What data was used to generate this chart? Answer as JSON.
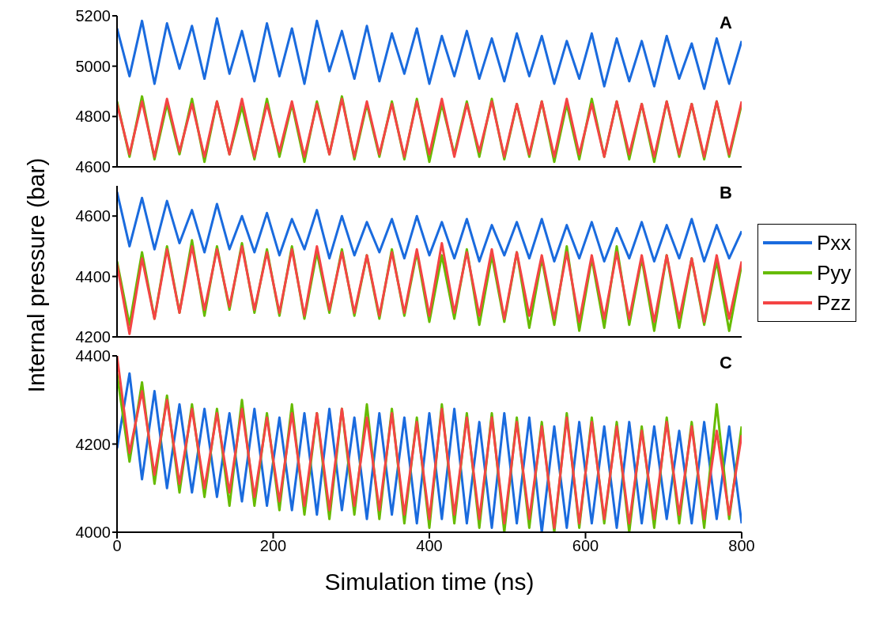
{
  "chart_data": [
    {
      "type": "line",
      "title": "A",
      "x": [
        0,
        16,
        32,
        48,
        64,
        80,
        96,
        112,
        128,
        144,
        160,
        176,
        192,
        208,
        224,
        240,
        256,
        272,
        288,
        304,
        320,
        336,
        352,
        368,
        384,
        400,
        416,
        432,
        448,
        464,
        480,
        496,
        512,
        528,
        544,
        560,
        576,
        592,
        608,
        624,
        640,
        656,
        672,
        688,
        704,
        720,
        736,
        752,
        768,
        784,
        800
      ],
      "xlim": [
        0,
        800
      ],
      "xticks": [
        0,
        200,
        400,
        600,
        800
      ],
      "ylim": [
        4600,
        5200
      ],
      "yticks": [
        4600,
        4800,
        5000,
        5200
      ],
      "tick_labels": "y",
      "series": [
        {
          "color": "#1a6bde",
          "values": [
            5150,
            4960,
            5180,
            4930,
            5170,
            4990,
            5160,
            4950,
            5190,
            4970,
            5140,
            4940,
            5170,
            4960,
            5150,
            4930,
            5180,
            4980,
            5140,
            4950,
            5160,
            4940,
            5130,
            4970,
            5150,
            4930,
            5120,
            4960,
            5140,
            4950,
            5110,
            4940,
            5130,
            4960,
            5120,
            4930,
            5100,
            4950,
            5130,
            4920,
            5110,
            4940,
            5100,
            4920,
            5120,
            4950,
            5090,
            4910,
            5110,
            4930,
            5100
          ]
        },
        {
          "color": "#66bb00",
          "values": [
            4860,
            4640,
            4880,
            4630,
            4850,
            4650,
            4870,
            4620,
            4860,
            4650,
            4840,
            4630,
            4870,
            4640,
            4850,
            4620,
            4860,
            4650,
            4880,
            4630,
            4850,
            4640,
            4860,
            4630,
            4870,
            4620,
            4850,
            4650,
            4860,
            4640,
            4870,
            4630,
            4850,
            4640,
            4860,
            4620,
            4850,
            4630,
            4870,
            4640,
            4860,
            4630,
            4850,
            4620,
            4860,
            4640,
            4850,
            4630,
            4860,
            4640,
            4850
          ]
        },
        {
          "color": "#f44444",
          "values": [
            4850,
            4650,
            4860,
            4640,
            4870,
            4660,
            4850,
            4640,
            4860,
            4650,
            4870,
            4640,
            4850,
            4660,
            4860,
            4640,
            4850,
            4650,
            4870,
            4640,
            4860,
            4650,
            4850,
            4640,
            4860,
            4650,
            4870,
            4640,
            4850,
            4660,
            4860,
            4640,
            4850,
            4650,
            4860,
            4640,
            4870,
            4650,
            4850,
            4640,
            4860,
            4650,
            4850,
            4640,
            4860,
            4650,
            4850,
            4640,
            4860,
            4650,
            4860
          ]
        }
      ]
    },
    {
      "type": "line",
      "title": "B",
      "ylabel": "Internal pressure (bar)",
      "legend": "right",
      "x": [
        0,
        16,
        32,
        48,
        64,
        80,
        96,
        112,
        128,
        144,
        160,
        176,
        192,
        208,
        224,
        240,
        256,
        272,
        288,
        304,
        320,
        336,
        352,
        368,
        384,
        400,
        416,
        432,
        448,
        464,
        480,
        496,
        512,
        528,
        544,
        560,
        576,
        592,
        608,
        624,
        640,
        656,
        672,
        688,
        704,
        720,
        736,
        752,
        768,
        784,
        800
      ],
      "xlim": [
        0,
        800
      ],
      "xticks": [
        0,
        200,
        400,
        600,
        800
      ],
      "ylim": [
        4200,
        4700
      ],
      "yticks": [
        4200,
        4400,
        4600
      ],
      "tick_labels": "y",
      "series": [
        {
          "name": "Pxx",
          "color": "#1a6bde",
          "values": [
            4680,
            4500,
            4660,
            4490,
            4650,
            4510,
            4620,
            4480,
            4640,
            4490,
            4600,
            4480,
            4610,
            4470,
            4590,
            4490,
            4620,
            4460,
            4600,
            4470,
            4580,
            4480,
            4590,
            4460,
            4600,
            4470,
            4580,
            4460,
            4590,
            4450,
            4570,
            4470,
            4580,
            4460,
            4590,
            4450,
            4570,
            4460,
            4580,
            4450,
            4560,
            4460,
            4580,
            4450,
            4570,
            4460,
            4590,
            4450,
            4570,
            4460,
            4550
          ]
        },
        {
          "name": "Pyy",
          "color": "#66bb00",
          "values": [
            4450,
            4240,
            4480,
            4260,
            4500,
            4280,
            4520,
            4270,
            4500,
            4290,
            4510,
            4280,
            4490,
            4270,
            4500,
            4260,
            4480,
            4280,
            4490,
            4270,
            4470,
            4260,
            4490,
            4270,
            4480,
            4250,
            4470,
            4260,
            4490,
            4240,
            4470,
            4250,
            4480,
            4230,
            4460,
            4240,
            4500,
            4220,
            4460,
            4230,
            4500,
            4240,
            4460,
            4220,
            4470,
            4230,
            4460,
            4240,
            4450,
            4220,
            4440
          ]
        },
        {
          "name": "Pzz",
          "color": "#f44444",
          "values": [
            4440,
            4210,
            4460,
            4260,
            4490,
            4280,
            4500,
            4290,
            4490,
            4300,
            4500,
            4290,
            4480,
            4280,
            4490,
            4270,
            4500,
            4290,
            4480,
            4280,
            4470,
            4270,
            4480,
            4280,
            4490,
            4270,
            4510,
            4280,
            4480,
            4270,
            4490,
            4260,
            4480,
            4270,
            4470,
            4260,
            4480,
            4250,
            4470,
            4260,
            4480,
            4260,
            4470,
            4250,
            4470,
            4260,
            4460,
            4250,
            4470,
            4260,
            4450
          ]
        }
      ]
    },
    {
      "type": "line",
      "title": "C",
      "xlabel": "Simulation time (ns)",
      "x": [
        0,
        16,
        32,
        48,
        64,
        80,
        96,
        112,
        128,
        144,
        160,
        176,
        192,
        208,
        224,
        240,
        256,
        272,
        288,
        304,
        320,
        336,
        352,
        368,
        384,
        400,
        416,
        432,
        448,
        464,
        480,
        496,
        512,
        528,
        544,
        560,
        576,
        592,
        608,
        624,
        640,
        656,
        672,
        688,
        704,
        720,
        736,
        752,
        768,
        784,
        800
      ],
      "xlim": [
        0,
        800
      ],
      "xticks": [
        0,
        200,
        400,
        600,
        800
      ],
      "ylim": [
        4000,
        4400
      ],
      "yticks": [
        4000,
        4200,
        4400
      ],
      "series": [
        {
          "color": "#1a6bde",
          "values": [
            4190,
            4360,
            4120,
            4320,
            4100,
            4290,
            4090,
            4280,
            4080,
            4270,
            4070,
            4280,
            4060,
            4260,
            4050,
            4270,
            4040,
            4280,
            4050,
            4260,
            4030,
            4270,
            4040,
            4260,
            4020,
            4270,
            4030,
            4280,
            4020,
            4250,
            4010,
            4270,
            4020,
            4260,
            4000,
            4240,
            4010,
            4250,
            4020,
            4240,
            4010,
            4250,
            4020,
            4240,
            4030,
            4230,
            4020,
            4250,
            4030,
            4240,
            4020
          ]
        },
        {
          "color": "#66bb00",
          "values": [
            4360,
            4160,
            4340,
            4110,
            4310,
            4090,
            4290,
            4080,
            4280,
            4060,
            4300,
            4060,
            4270,
            4050,
            4290,
            4040,
            4270,
            4030,
            4280,
            4040,
            4290,
            4030,
            4280,
            4020,
            4260,
            4010,
            4290,
            4020,
            4270,
            4010,
            4270,
            4000,
            4260,
            4010,
            4250,
            4000,
            4270,
            4010,
            4260,
            4020,
            4250,
            4000,
            4240,
            4010,
            4260,
            4020,
            4250,
            4010,
            4290,
            4030,
            4240
          ]
        },
        {
          "color": "#f44444",
          "values": [
            4400,
            4180,
            4320,
            4130,
            4300,
            4110,
            4280,
            4100,
            4270,
            4090,
            4280,
            4080,
            4260,
            4070,
            4270,
            4060,
            4270,
            4050,
            4280,
            4060,
            4260,
            4050,
            4270,
            4040,
            4250,
            4030,
            4280,
            4040,
            4260,
            4030,
            4260,
            4020,
            4250,
            4030,
            4240,
            4010,
            4260,
            4020,
            4250,
            4030,
            4240,
            4020,
            4230,
            4030,
            4250,
            4040,
            4240,
            4030,
            4230,
            4040,
            4220
          ]
        }
      ]
    }
  ]
}
